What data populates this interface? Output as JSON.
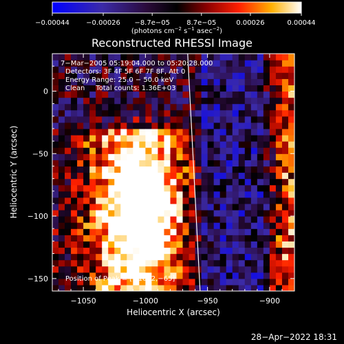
{
  "chart_data": {
    "type": "heatmap",
    "title": "Reconstructed RHESSI Image",
    "xlabel": "Heliocentric X (arcsec)",
    "ylabel": "Heliocentric Y (arcsec)",
    "xlim": [
      -1075,
      -880
    ],
    "ylim": [
      -160,
      30
    ],
    "x_ticks": [
      -1050,
      -1000,
      -950,
      -900
    ],
    "x_tick_labels": [
      "−1050",
      "−1000",
      "−950",
      "−900"
    ],
    "y_ticks": [
      0,
      -50,
      -100,
      -150
    ],
    "y_tick_labels": [
      "0",
      "−50",
      "−100",
      "−150"
    ],
    "colorbar": {
      "range": [
        -0.00044,
        0.00044
      ],
      "tick_values": [
        -0.00044,
        -0.00026,
        -8.7e-05,
        8.7e-05,
        0.00026,
        0.00044
      ],
      "tick_labels": [
        "−0.00044",
        "−0.00026",
        "−8.7e−05",
        "8.7e−05",
        "0.00026",
        "0.00044"
      ],
      "unit_base": "(photons cm",
      "unit_exp1": "−2",
      "unit_mid": " s",
      "unit_exp2": "−1",
      "unit_mid2": " asec",
      "unit_exp3": "−2",
      "unit_end": ")"
    },
    "annotations": {
      "time_range": "7−Mar−2005 05:19:04.000 to 05:20:28.000",
      "detectors": "Detectors: 3F 4F 5F 6F 7F 8F, Att 0",
      "energy": "Energy Range: 25.0 − 50.0 keV",
      "clean_counts": "Clean     Total counts: 1.36E+03",
      "peak": "Position of Peak = [−1002,−65]"
    },
    "peak_position": [
      -1002,
      -65
    ],
    "limb_line": [
      [
        -966,
        30
      ],
      [
        -956,
        -160
      ]
    ],
    "emission_region": {
      "description": "bright flux concentrated at x < -960, y < -40"
    }
  },
  "footer_date": "28−Apr−2022 18:31"
}
